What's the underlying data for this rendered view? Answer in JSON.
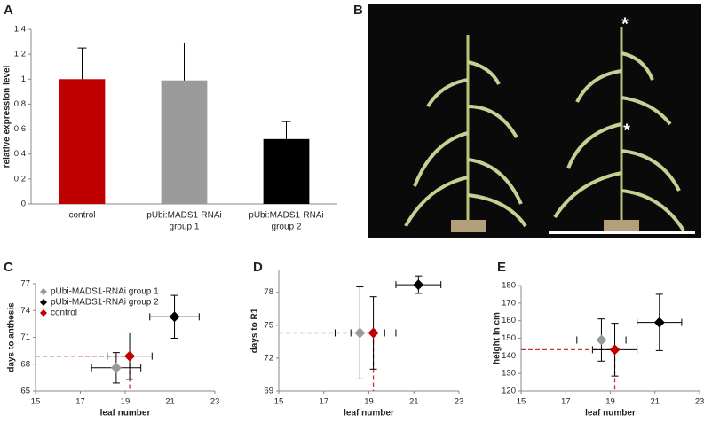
{
  "panel_labels": [
    "A",
    "B",
    "C",
    "D",
    "E"
  ],
  "photo": {
    "annotations": [
      "*",
      "*"
    ]
  },
  "chart_data": [
    {
      "type": "bar",
      "y_label": "relative expression level",
      "categories": [
        [
          "control"
        ],
        [
          "pUbi:MADS1-RNAi",
          "group 1"
        ],
        [
          "pUbi:MADS1-RNAi",
          "group 2"
        ]
      ],
      "values": [
        1.0,
        0.99,
        0.52
      ],
      "errors": [
        0.25,
        0.3,
        0.14
      ],
      "colors": [
        "#c00000",
        "#9b9b9b",
        "#000000"
      ],
      "ylim": [
        0,
        1.4
      ],
      "yticks": [
        0,
        0.2,
        0.4,
        0.6,
        0.8,
        1,
        1.2,
        1.4
      ]
    },
    {
      "type": "scatter",
      "x_label": "leaf number",
      "y_label": "days to anthesis",
      "legend": "upper left",
      "series": [
        {
          "name": "pUbi-MADS1-RNAi group 1",
          "color": "#999999",
          "x": [
            18.6
          ],
          "y": [
            67.6
          ],
          "xerr": [
            1.1
          ],
          "yerr": [
            1.7
          ]
        },
        {
          "name": "pUbi-MADS1-RNAi group 2",
          "color": "#000000",
          "x": [
            21.2
          ],
          "y": [
            73.3
          ],
          "xerr": [
            1.1
          ],
          "yerr": [
            2.4
          ]
        },
        {
          "name": "control",
          "color": "#c00000",
          "x": [
            19.2
          ],
          "y": [
            68.9
          ],
          "xerr": [
            1.0
          ],
          "yerr": [
            2.6
          ]
        }
      ],
      "xlim": [
        15,
        23
      ],
      "xticks": [
        15,
        17,
        19,
        21,
        23
      ],
      "ylim": [
        65,
        77
      ],
      "yticks": [
        65,
        68,
        71,
        74,
        77
      ]
    },
    {
      "type": "scatter",
      "x_label": "leaf number",
      "y_label": "days to R1",
      "series": [
        {
          "color": "#999999",
          "x": [
            18.6
          ],
          "y": [
            74.3
          ],
          "xerr": [
            1.1
          ],
          "yerr": [
            4.2
          ]
        },
        {
          "color": "#000000",
          "x": [
            21.2
          ],
          "y": [
            78.7
          ],
          "xerr": [
            1.0
          ],
          "yerr": [
            0.8
          ]
        },
        {
          "color": "#c00000",
          "x": [
            19.2
          ],
          "y": [
            74.3
          ],
          "xerr": [
            1.0
          ],
          "yerr": [
            3.3
          ]
        }
      ],
      "xlim": [
        15,
        23
      ],
      "xticks": [
        15,
        17,
        19,
        21,
        23
      ],
      "ylim": [
        69,
        80
      ],
      "yticks": [
        69,
        72,
        75,
        78
      ]
    },
    {
      "type": "scatter",
      "x_label": "leaf number",
      "y_label": "height in cm",
      "series": [
        {
          "color": "#999999",
          "x": [
            18.6
          ],
          "y": [
            149
          ],
          "xerr": [
            1.1
          ],
          "yerr": [
            12
          ]
        },
        {
          "color": "#000000",
          "x": [
            21.2
          ],
          "y": [
            159
          ],
          "xerr": [
            1.0
          ],
          "yerr": [
            16
          ]
        },
        {
          "color": "#c00000",
          "x": [
            19.2
          ],
          "y": [
            143.5
          ],
          "xerr": [
            1.0
          ],
          "yerr": [
            15
          ]
        }
      ],
      "xlim": [
        15,
        23
      ],
      "xticks": [
        15,
        17,
        19,
        21,
        23
      ],
      "ylim": [
        120,
        180
      ],
      "yticks": [
        120,
        130,
        140,
        150,
        160,
        170,
        180
      ]
    }
  ]
}
